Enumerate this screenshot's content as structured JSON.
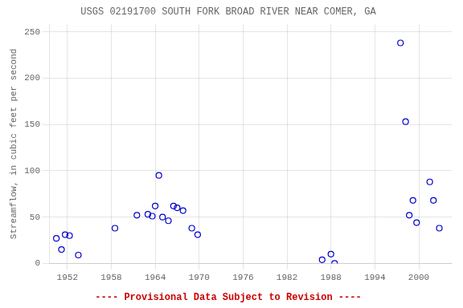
{
  "chart_data": {
    "type": "scatter",
    "title": "USGS 02191700 SOUTH FORK BROAD RIVER NEAR COMER, GA",
    "y_label": "Streamflow, in cubic feet per second",
    "x": [
      1950.5,
      1951.2,
      1951.7,
      1952.3,
      1953.5,
      1958.5,
      1961.5,
      1963.0,
      1963.6,
      1964.0,
      1964.5,
      1965.0,
      1965.8,
      1966.5,
      1967.0,
      1967.8,
      1969.0,
      1969.8,
      1986.8,
      1988.0,
      1988.5,
      1997.5,
      1998.2,
      1998.7,
      1999.2,
      1999.7,
      2001.5,
      2002.0,
      2002.8
    ],
    "values": [
      27,
      15,
      31,
      30,
      9,
      38,
      52,
      53,
      51,
      62,
      95,
      50,
      46,
      62,
      60,
      57,
      38,
      31,
      4,
      10,
      0,
      238,
      153,
      52,
      68,
      44,
      88,
      68,
      38
    ],
    "color": "#0000cc",
    "marker": "circle",
    "xlim": [
      1949.5,
      2004.5
    ],
    "ylim": [
      0,
      258
    ],
    "xticks": [
      1952,
      1958,
      1964,
      1970,
      1976,
      1982,
      1988,
      1994,
      2000
    ],
    "yticks": [
      0,
      50,
      100,
      150,
      200,
      250
    ],
    "grid": true,
    "annotations": [
      {
        "text": "---- Provisional Data Subject to Revision ----",
        "color": "#cc0000"
      }
    ]
  }
}
